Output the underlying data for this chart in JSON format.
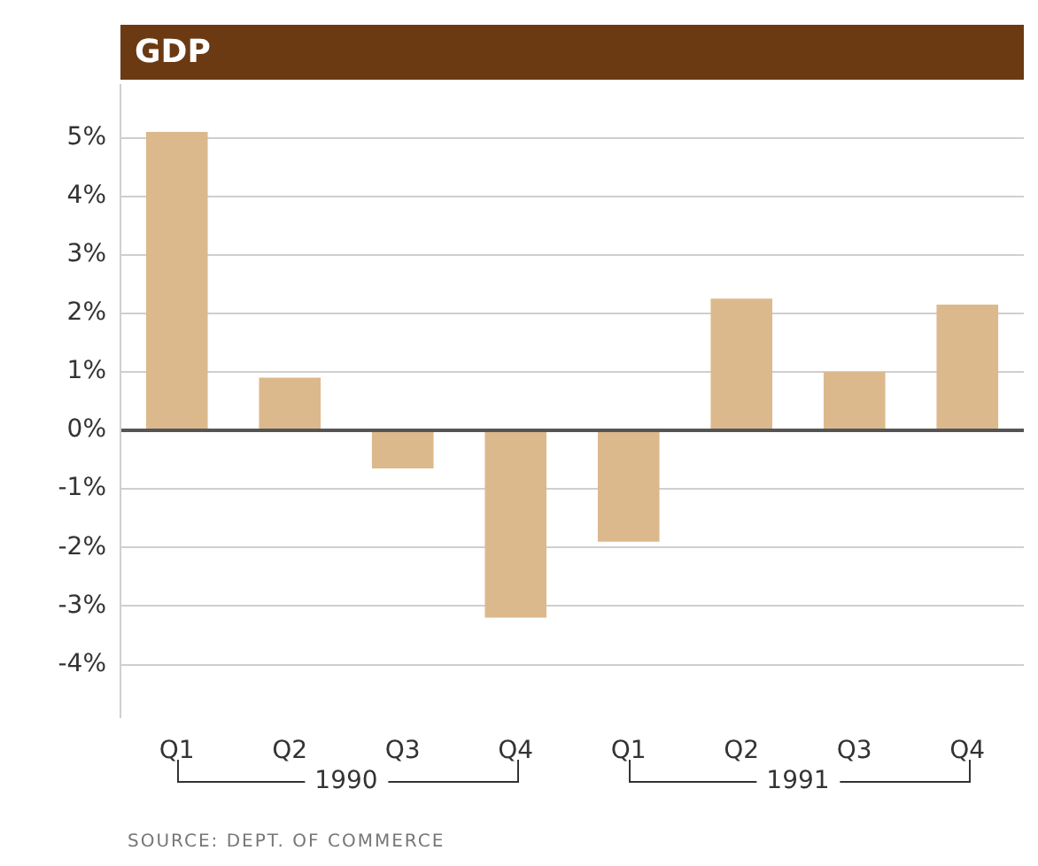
{
  "chart_data": {
    "type": "bar",
    "title": "GDP",
    "categories": [
      "Q1",
      "Q2",
      "Q3",
      "Q4",
      "Q1",
      "Q2",
      "Q3",
      "Q4"
    ],
    "values": [
      5.1,
      0.9,
      -0.65,
      -3.2,
      -1.9,
      2.25,
      1.0,
      2.15
    ],
    "color": "#dcb98c",
    "ylim": [
      -4.9,
      5.9
    ],
    "yticks": [
      {
        "value": -4,
        "label": "-4%"
      },
      {
        "value": -3,
        "label": "-3%"
      },
      {
        "value": -2,
        "label": "-2%"
      },
      {
        "value": -1,
        "label": "-1%"
      },
      {
        "value": 0,
        "label": "0%"
      },
      {
        "value": 1,
        "label": "1%"
      },
      {
        "value": 2,
        "label": "2%"
      },
      {
        "value": 3,
        "label": "3%"
      },
      {
        "value": 4,
        "label": "4%"
      },
      {
        "value": 5,
        "label": "5%"
      }
    ],
    "grid": "y",
    "legend": false,
    "annotations": [
      "1990",
      "1991",
      "SOURCE: DEPT. OF COMMERCE"
    ]
  }
}
